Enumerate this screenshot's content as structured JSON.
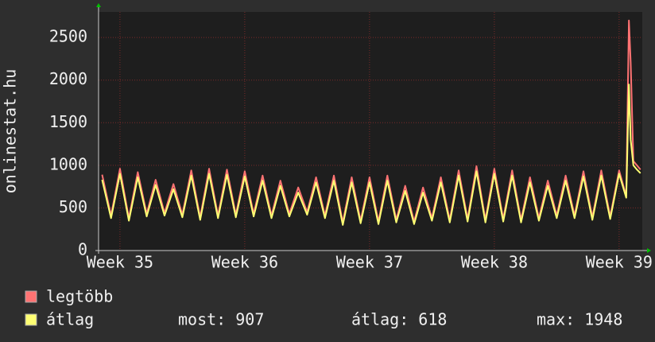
{
  "chart_data": {
    "type": "line",
    "y_label": "onlinestat.hu",
    "xlim": [
      0,
      30.5
    ],
    "xticks": [
      {
        "value": 1.2,
        "label": "Week 35"
      },
      {
        "value": 8.2,
        "label": "Week 36"
      },
      {
        "value": 15.2,
        "label": "Week 37"
      },
      {
        "value": 22.2,
        "label": "Week 38"
      },
      {
        "value": 29.2,
        "label": "Week 39"
      }
    ],
    "ylim": [
      0,
      2800
    ],
    "yticks": [
      0,
      500,
      1000,
      1500,
      2000,
      2500
    ],
    "grid": true,
    "x": [
      0.2,
      0.7,
      1.2,
      1.7,
      2.2,
      2.7,
      3.2,
      3.7,
      4.2,
      4.7,
      5.2,
      5.7,
      6.2,
      6.7,
      7.2,
      7.7,
      8.2,
      8.7,
      9.2,
      9.7,
      10.2,
      10.7,
      11.2,
      11.7,
      12.2,
      12.7,
      13.2,
      13.7,
      14.2,
      14.7,
      15.2,
      15.7,
      16.2,
      16.7,
      17.2,
      17.7,
      18.2,
      18.7,
      19.2,
      19.7,
      20.2,
      20.7,
      21.2,
      21.7,
      22.2,
      22.7,
      23.2,
      23.7,
      24.2,
      24.7,
      25.2,
      25.7,
      26.2,
      26.7,
      27.2,
      27.7,
      28.2,
      28.7,
      29.2,
      29.6,
      29.75,
      29.85,
      30.0,
      30.2,
      30.4
    ],
    "series": [
      {
        "name": "legtöbb",
        "color": "#ff7373",
        "values": [
          890,
          410,
          960,
          380,
          920,
          430,
          830,
          440,
          780,
          420,
          940,
          390,
          960,
          410,
          950,
          420,
          930,
          430,
          880,
          410,
          820,
          430,
          740,
          450,
          860,
          410,
          880,
          330,
          860,
          350,
          860,
          340,
          880,
          360,
          760,
          340,
          740,
          380,
          860,
          360,
          940,
          370,
          990,
          360,
          960,
          370,
          940,
          360,
          860,
          380,
          820,
          410,
          880,
          410,
          930,
          390,
          940,
          400,
          940,
          640,
          2700,
          2200,
          1050,
          1000,
          950
        ]
      },
      {
        "name": "átlag",
        "color": "#ffff73",
        "values": [
          830,
          380,
          900,
          350,
          860,
          400,
          770,
          410,
          720,
          390,
          880,
          360,
          900,
          380,
          890,
          390,
          870,
          400,
          820,
          380,
          760,
          400,
          680,
          420,
          800,
          380,
          820,
          300,
          800,
          320,
          800,
          310,
          820,
          330,
          700,
          310,
          680,
          350,
          800,
          330,
          880,
          340,
          930,
          330,
          900,
          340,
          880,
          330,
          800,
          350,
          760,
          380,
          820,
          380,
          870,
          360,
          880,
          370,
          900,
          620,
          1948,
          1300,
          1000,
          950,
          907
        ]
      }
    ],
    "stats": [
      "most: 907",
      "átlag: 618",
      "max: 1948"
    ]
  }
}
